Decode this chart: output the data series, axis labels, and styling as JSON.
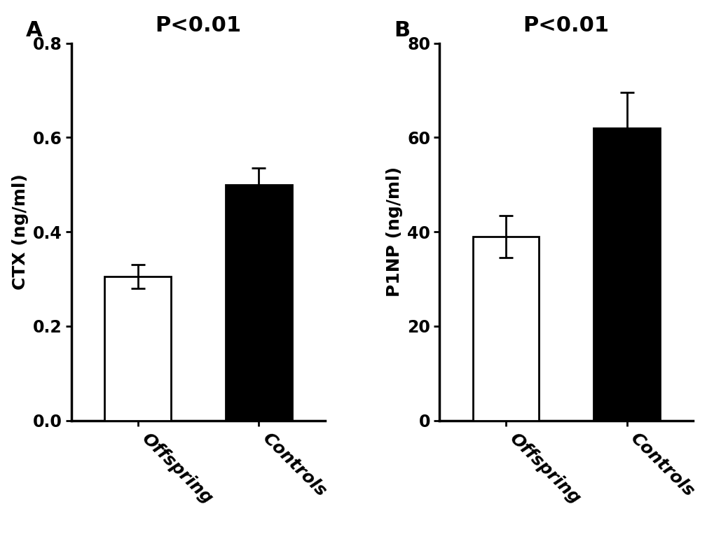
{
  "panel_A": {
    "label": "A",
    "title": "P<0.01",
    "ylabel": "CTX (ng/ml)",
    "categories": [
      "Offspring",
      "Controls"
    ],
    "values": [
      0.305,
      0.5
    ],
    "errors": [
      0.025,
      0.035
    ],
    "bar_colors": [
      "#ffffff",
      "#000000"
    ],
    "bar_edgecolors": [
      "#000000",
      "#000000"
    ],
    "ylim": [
      0,
      0.8
    ],
    "yticks": [
      0.0,
      0.2,
      0.4,
      0.6,
      0.8
    ],
    "ytick_labels": [
      "0.0",
      "0.2",
      "0.4",
      "0.6",
      "0.8"
    ]
  },
  "panel_B": {
    "label": "B",
    "title": "P<0.01",
    "ylabel": "P1NP (ng/ml)",
    "categories": [
      "Offspring",
      "Controls"
    ],
    "values": [
      39.0,
      62.0
    ],
    "errors": [
      4.5,
      7.5
    ],
    "bar_colors": [
      "#ffffff",
      "#000000"
    ],
    "bar_edgecolors": [
      "#000000",
      "#000000"
    ],
    "ylim": [
      0,
      80
    ],
    "yticks": [
      0,
      20,
      40,
      60,
      80
    ],
    "ytick_labels": [
      "0",
      "20",
      "40",
      "60",
      "80"
    ]
  },
  "background_color": "#ffffff",
  "bar_width": 0.55,
  "title_fontsize": 22,
  "label_fontsize": 18,
  "tick_fontsize": 17,
  "panel_label_fontsize": 22,
  "xticklabel_fontsize": 18,
  "error_capsize": 7,
  "error_linewidth": 2.0,
  "bar_linewidth": 2.0,
  "spine_linewidth": 2.5
}
